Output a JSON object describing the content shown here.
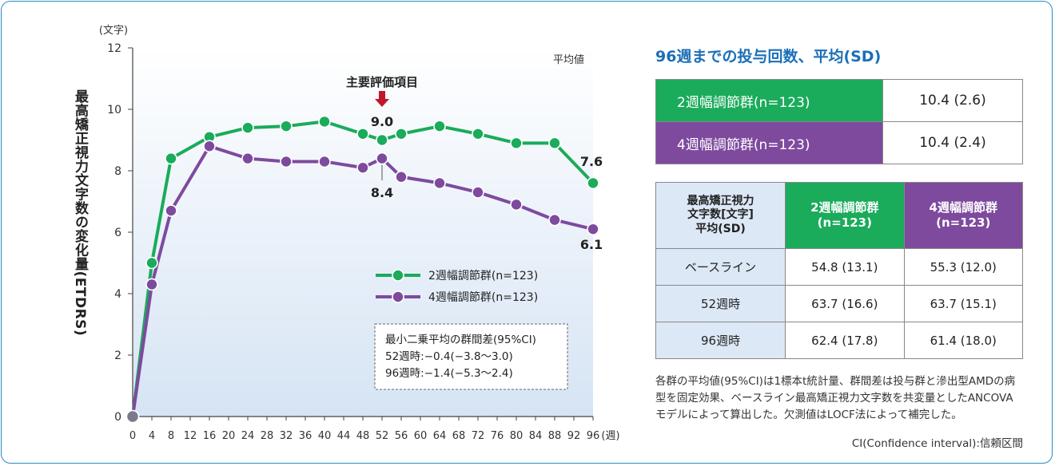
{
  "chart_data": {
    "type": "line",
    "y_unit": "(文字)",
    "x_unit": "(週)",
    "ylabel": "最高矯正視力文字数の変化量(ETDRS)",
    "corner_label": "平均値",
    "xlim": [
      0,
      96
    ],
    "ylim": [
      0,
      12
    ],
    "x_ticks": [
      0,
      4,
      8,
      12,
      16,
      20,
      24,
      28,
      32,
      36,
      40,
      44,
      48,
      52,
      56,
      60,
      64,
      68,
      72,
      76,
      80,
      84,
      88,
      92,
      96
    ],
    "y_ticks": [
      0,
      2,
      4,
      6,
      8,
      10,
      12
    ],
    "grid": false,
    "series": [
      {
        "name": "2週幅調節群(n=123)",
        "color": "#1aab5b",
        "x": [
          0,
          4,
          8,
          16,
          24,
          32,
          40,
          48,
          52,
          56,
          64,
          72,
          80,
          88,
          96
        ],
        "y": [
          0,
          5.0,
          8.4,
          9.1,
          9.4,
          9.45,
          9.6,
          9.2,
          9.0,
          9.2,
          9.45,
          9.2,
          8.9,
          8.9,
          7.6
        ]
      },
      {
        "name": "4週幅調節群(n=123)",
        "color": "#7e4a9e",
        "x": [
          0,
          4,
          8,
          16,
          24,
          32,
          40,
          48,
          52,
          56,
          64,
          72,
          80,
          88,
          96
        ],
        "y": [
          0,
          4.3,
          6.7,
          8.8,
          8.4,
          8.3,
          8.3,
          8.1,
          8.4,
          7.8,
          7.6,
          7.3,
          6.9,
          6.4,
          6.1
        ]
      }
    ],
    "annotations": {
      "primary_endpoint": "主要評価項目",
      "green_52": "9.0",
      "purple_52": "8.4",
      "green_96": "7.6",
      "purple_96": "6.1"
    },
    "stats_box": {
      "title": "最小二乗平均の群間差(95%CI)",
      "line1": "52週時:−0.4(−3.8〜3.0)",
      "line2": "96週時:−1.4(−5.3〜2.4)"
    },
    "legend_placement": "center-right"
  },
  "colors": {
    "green": "#1aab5b",
    "purple": "#7e4a9e",
    "title_blue": "#1b6fb8",
    "frame_blue": "#2a8ac8",
    "header_blue": "#dde8f6"
  },
  "dose": {
    "title": "96週までの投与回数、平均(SD)",
    "rows": [
      {
        "label": "2週幅調節群(n=123)",
        "value": "10.4 (2.6)"
      },
      {
        "label": "4週幅調節群(n=123)",
        "value": "10.4 (2.4)"
      }
    ]
  },
  "etdrs": {
    "header_label": [
      "最高矯正視力",
      "文字数[文字]",
      "平均(SD)"
    ],
    "header_green": [
      "2週幅調節群",
      "(n=123)"
    ],
    "header_purple": [
      "4週幅調節群",
      "(n=123)"
    ],
    "rows": [
      {
        "label": "ベースライン",
        "green": "54.8 (13.1)",
        "purple": "55.3 (12.0)"
      },
      {
        "label": "52週時",
        "green": "63.7 (16.6)",
        "purple": "63.7 (15.1)"
      },
      {
        "label": "96週時",
        "green": "62.4 (17.8)",
        "purple": "61.4 (18.0)"
      }
    ]
  },
  "note": "各群の平均値(95%CI)は1標本t統計量、群間差は投与群と滲出型AMDの病型を固定効果、ベースライン最高矯正視力文字数を共変量としたANCOVAモデルによって算出した。欠測値はLOCF法によって補完した。",
  "ci_note": "CI(Confidence interval):信頼区間"
}
